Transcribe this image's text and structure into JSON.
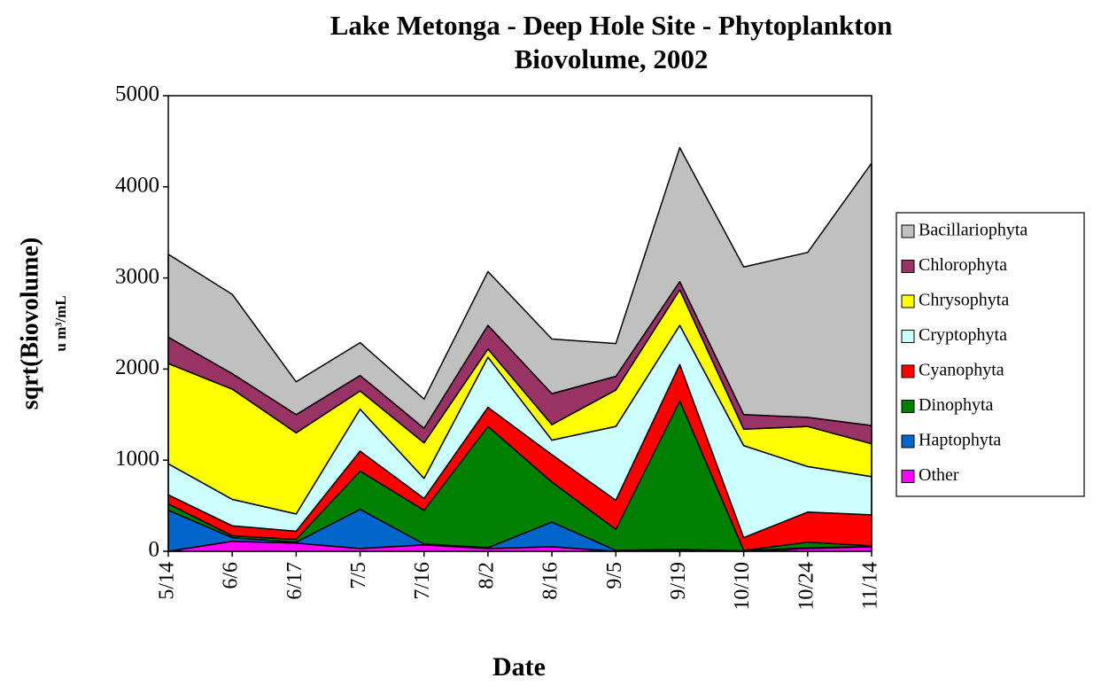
{
  "chart_data": {
    "type": "stacked_area",
    "title": "Lake Metonga - Deep Hole Site - Phytoplankton Biovolume, 2002",
    "x_label": "Date",
    "y_label": "sqrt(Biovolume)",
    "y_unit": "u m³/mL",
    "categories": [
      "5/14",
      "6/6",
      "6/17",
      "7/5",
      "7/16",
      "8/2",
      "8/16",
      "9/5",
      "9/19",
      "10/10",
      "10/24",
      "11/14"
    ],
    "series": [
      {
        "name": "Other",
        "color": "#ff00ff",
        "values": [
          0,
          110,
          90,
          30,
          70,
          30,
          50,
          0,
          20,
          0,
          30,
          50
        ]
      },
      {
        "name": "Haptophyta",
        "color": "#0066cc",
        "values": [
          450,
          40,
          10,
          430,
          10,
          10,
          270,
          10,
          0,
          5,
          10,
          0
        ]
      },
      {
        "name": "Dinophyta",
        "color": "#008000",
        "values": [
          70,
          20,
          30,
          420,
          370,
          1330,
          440,
          230,
          1630,
          5,
          60,
          10
        ]
      },
      {
        "name": "Cyanophyta",
        "color": "#ff0000",
        "values": [
          100,
          110,
          90,
          220,
          130,
          210,
          300,
          320,
          400,
          140,
          330,
          340
        ]
      },
      {
        "name": "Cryptophyta",
        "color": "#ccffff",
        "values": [
          340,
          290,
          190,
          460,
          220,
          550,
          160,
          810,
          430,
          1010,
          500,
          420
        ]
      },
      {
        "name": "Chrysophyta",
        "color": "#ffff00",
        "values": [
          1100,
          1210,
          890,
          200,
          390,
          90,
          170,
          400,
          390,
          180,
          440,
          360
        ]
      },
      {
        "name": "Chlorophyta",
        "color": "#993366",
        "values": [
          290,
          170,
          200,
          170,
          160,
          260,
          340,
          150,
          90,
          160,
          100,
          200
        ]
      },
      {
        "name": "Bacillariophyta",
        "color": "#c0c0c0",
        "values": [
          910,
          870,
          360,
          360,
          320,
          590,
          600,
          360,
          1470,
          1620,
          1810,
          2880
        ]
      }
    ],
    "ylim": [
      0,
      5000
    ],
    "yticks": [
      0,
      1000,
      2000,
      3000,
      4000,
      5000
    ],
    "legend": "right"
  }
}
